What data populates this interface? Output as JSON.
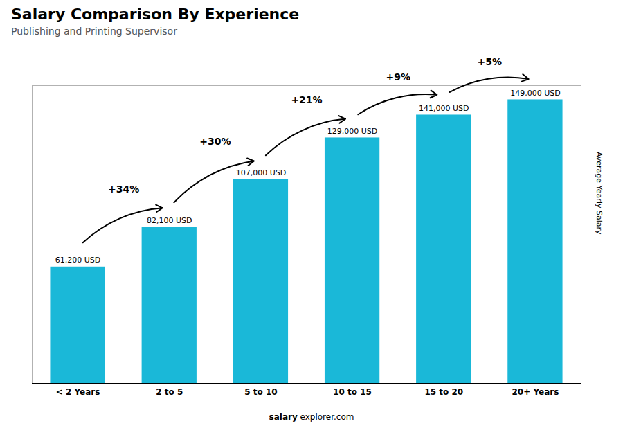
{
  "chart_data": {
    "type": "bar",
    "title": "Salary Comparison By Experience",
    "subtitle": "Publishing and Printing Supervisor",
    "ylabel": "Average Yearly Salary",
    "categories": [
      "< 2 Years",
      "2 to 5",
      "5 to 10",
      "10 to 15",
      "15 to 20",
      "20+ Years"
    ],
    "values": [
      61200,
      82100,
      107000,
      129000,
      141000,
      149000
    ],
    "value_labels": [
      "61,200 USD",
      "82,100 USD",
      "107,000 USD",
      "129,000 USD",
      "141,000 USD",
      "149,000 USD"
    ],
    "data_labels": true,
    "color": "#1ab8d8",
    "ylim": [
      0,
      156450
    ],
    "tick_labels": "x",
    "annotations": [
      "+34%",
      "+30%",
      "+21%",
      "+9%",
      "+5%"
    ],
    "footer": [
      "salary",
      "explorer.com"
    ]
  }
}
